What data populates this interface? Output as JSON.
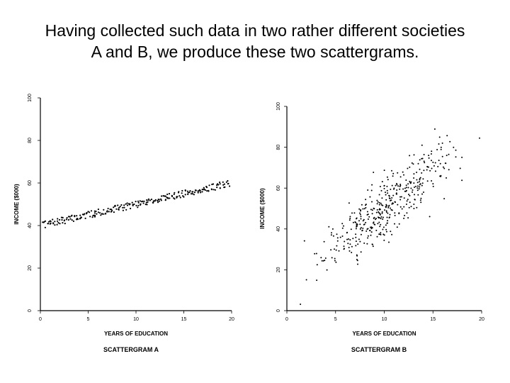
{
  "slide": {
    "title_line1": "Having collected such data in two rather different societies",
    "title_line2": "A and B, we produce these two scattergrams."
  },
  "chart_data": [
    {
      "type": "scatter",
      "title": "SCATTERGRAM A",
      "xlabel": "YEARS OF EDUCATION",
      "ylabel": "INCOME ($000)",
      "xlim": [
        0,
        20
      ],
      "ylim": [
        0,
        100
      ],
      "xticks": [
        0,
        5,
        10,
        15,
        20
      ],
      "yticks": [
        0,
        20,
        40,
        60,
        80,
        100
      ],
      "grid": false,
      "trend": {
        "intercept": 40,
        "slope": 1,
        "spread": 1.6
      },
      "point_count": 240
    },
    {
      "type": "scatter",
      "title": "SCATTERGRAM B",
      "xlabel": "YEARS OF EDUCATION",
      "ylabel": "INCOME ($000)",
      "xlim": [
        0,
        20
      ],
      "ylim": [
        0,
        100
      ],
      "xticks": [
        0,
        5,
        10,
        15,
        20
      ],
      "yticks": [
        0,
        20,
        40,
        60,
        80,
        100
      ],
      "grid": false,
      "trend": {
        "intercept": 12,
        "slope": 3.8,
        "spread": 14
      },
      "point_count": 420
    }
  ]
}
